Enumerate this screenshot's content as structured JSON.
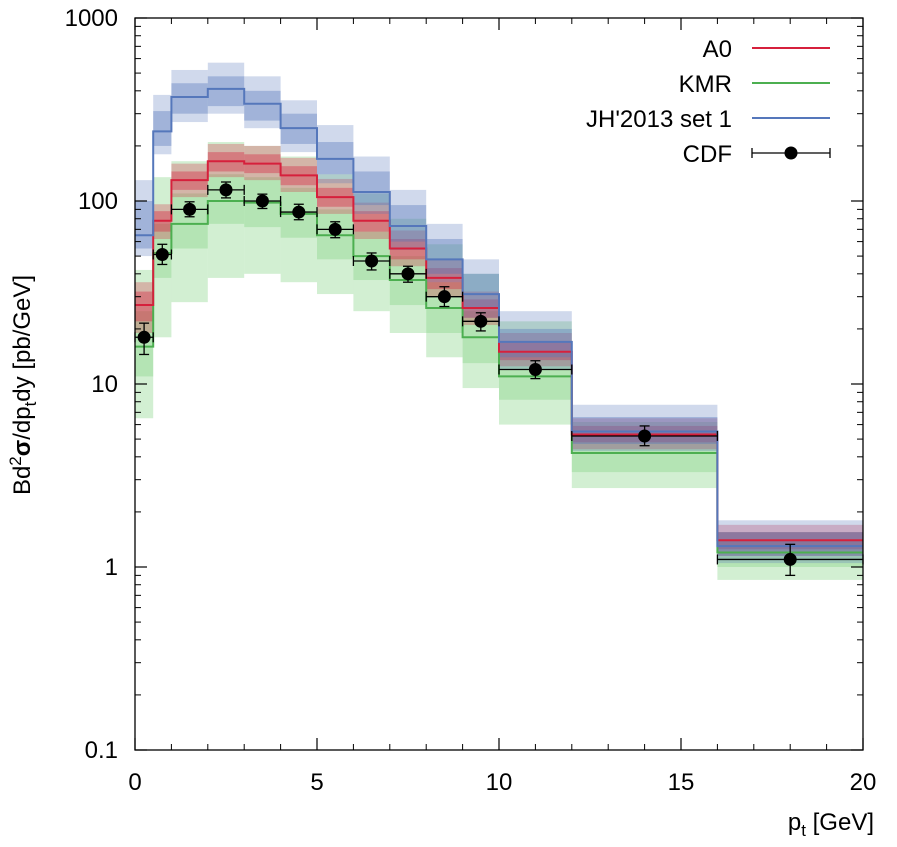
{
  "chart_data": {
    "type": "step-line-with-bands",
    "xlabel": "p",
    "xlabel_sub": "t",
    "xlabel_unit": " [GeV]",
    "ylabel_parts": [
      "Bd",
      "2",
      "σ",
      "/dp",
      "t",
      "dy [pb/GeV]"
    ],
    "xlim": [
      0,
      20
    ],
    "ylim": [
      0.1,
      1000
    ],
    "yscale": "log",
    "x_ticks": [
      0,
      5,
      10,
      15,
      20
    ],
    "x_tick_labels": [
      "0",
      "5",
      "10",
      "15",
      "20"
    ],
    "y_ticks": [
      0.1,
      1,
      10,
      100,
      1000
    ],
    "y_tick_labels": [
      "0.1",
      "1",
      "10",
      "100",
      "1000"
    ],
    "bin_edges": [
      0,
      0.5,
      1,
      2,
      3,
      4,
      5,
      6,
      7,
      8,
      9,
      10,
      12,
      16,
      20
    ],
    "legend_position": "top-right",
    "series": [
      {
        "name": "A0",
        "color": "#d6203c",
        "values": [
          27,
          78,
          130,
          165,
          160,
          138,
          105,
          78,
          55,
          38,
          26,
          15,
          5.3,
          1.4
        ],
        "band_inner": [
          [
            22,
            32
          ],
          [
            68,
            88
          ],
          [
            115,
            145
          ],
          [
            145,
            185
          ],
          [
            142,
            180
          ],
          [
            122,
            155
          ],
          [
            93,
            118
          ],
          [
            68,
            88
          ],
          [
            48,
            62
          ],
          [
            33,
            43
          ],
          [
            23,
            29
          ],
          [
            13.5,
            17
          ],
          [
            4.8,
            5.9
          ],
          [
            1.25,
            1.55
          ]
        ],
        "band_outer": [
          [
            19,
            36
          ],
          [
            62,
            96
          ],
          [
            105,
            160
          ],
          [
            135,
            205
          ],
          [
            130,
            200
          ],
          [
            112,
            172
          ],
          [
            85,
            132
          ],
          [
            62,
            98
          ],
          [
            44,
            69
          ],
          [
            30,
            48
          ],
          [
            21,
            32
          ],
          [
            12.5,
            19
          ],
          [
            4.4,
            6.5
          ],
          [
            1.15,
            1.7
          ]
        ],
        "band_color": "#d6203c"
      },
      {
        "name": "KMR",
        "color": "#4caf50",
        "values": [
          16,
          52,
          75,
          100,
          98,
          85,
          65,
          50,
          37,
          26,
          18,
          11,
          4.2,
          1.2
        ],
        "band_inner": [
          [
            11,
            25
          ],
          [
            38,
            75
          ],
          [
            55,
            110
          ],
          [
            75,
            140
          ],
          [
            72,
            135
          ],
          [
            63,
            118
          ],
          [
            48,
            90
          ],
          [
            37,
            68
          ],
          [
            27,
            50
          ],
          [
            19,
            36
          ],
          [
            13,
            25
          ],
          [
            8.2,
            15
          ],
          [
            3.3,
            5.4
          ],
          [
            1.0,
            1.4
          ]
        ],
        "band_outer": [
          [
            6.5,
            42
          ],
          [
            18,
            135
          ],
          [
            28,
            165
          ],
          [
            38,
            210
          ],
          [
            40,
            200
          ],
          [
            36,
            175
          ],
          [
            31,
            140
          ],
          [
            25,
            110
          ],
          [
            19,
            80
          ],
          [
            14,
            58
          ],
          [
            9.5,
            40
          ],
          [
            6.0,
            22
          ],
          [
            2.7,
            6.2
          ],
          [
            0.85,
            1.55
          ]
        ],
        "band_color": "#7fd17f"
      },
      {
        "name": "JH'2013 set 1",
        "color": "#5577bb",
        "values": [
          65,
          240,
          370,
          410,
          340,
          250,
          170,
          112,
          73,
          48,
          31,
          17,
          5.5,
          1.3
        ],
        "band_inner": [
          [
            55,
            100
          ],
          [
            200,
            310
          ],
          [
            300,
            440
          ],
          [
            330,
            480
          ],
          [
            275,
            400
          ],
          [
            205,
            300
          ],
          [
            140,
            210
          ],
          [
            95,
            145
          ],
          [
            60,
            95
          ],
          [
            40,
            62
          ],
          [
            26,
            40
          ],
          [
            14,
            20
          ],
          [
            4.7,
            6.6
          ],
          [
            1.15,
            1.55
          ]
        ],
        "band_outer": [
          [
            50,
            130
          ],
          [
            180,
            380
          ],
          [
            270,
            520
          ],
          [
            300,
            570
          ],
          [
            250,
            480
          ],
          [
            185,
            355
          ],
          [
            125,
            260
          ],
          [
            85,
            175
          ],
          [
            54,
            115
          ],
          [
            36,
            75
          ],
          [
            23,
            48
          ],
          [
            12,
            25
          ],
          [
            4.3,
            7.7
          ],
          [
            1.05,
            1.8
          ]
        ],
        "band_color": "#5577bb"
      }
    ],
    "data_points": {
      "name": "CDF",
      "color": "#000000",
      "x": [
        0.25,
        0.75,
        1.5,
        2.5,
        3.5,
        4.5,
        5.5,
        6.5,
        7.5,
        8.5,
        9.5,
        11,
        14,
        18
      ],
      "x_low": [
        0,
        0.5,
        1,
        2,
        3,
        4,
        5,
        6,
        7,
        8,
        9,
        10,
        12,
        16
      ],
      "x_high": [
        0.5,
        1,
        2,
        3,
        4,
        5,
        6,
        7,
        8,
        9,
        10,
        12,
        16,
        20
      ],
      "y": [
        18,
        51,
        90,
        115,
        100,
        87,
        70,
        47,
        40,
        30,
        22,
        12,
        5.2,
        1.1
      ],
      "y_low": [
        14.5,
        45,
        82,
        104,
        91,
        79,
        63,
        42,
        36,
        26.5,
        19.5,
        10.7,
        4.6,
        0.9
      ],
      "y_high": [
        21.5,
        58,
        99,
        127,
        109,
        96,
        77,
        52,
        44,
        34,
        24.5,
        13.4,
        5.9,
        1.33
      ]
    }
  }
}
